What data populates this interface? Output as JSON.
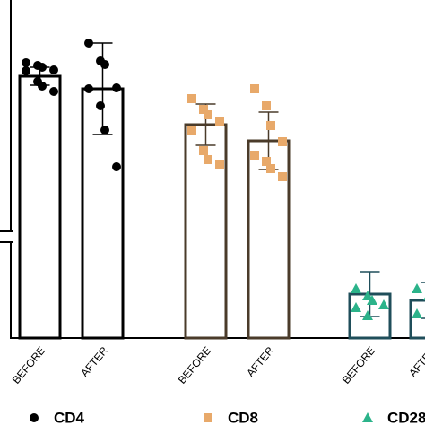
{
  "chart_data": {
    "type": "bar",
    "categories": [
      "BEFORE",
      "AFTER"
    ],
    "ylim": [
      0,
      360
    ],
    "series": [
      {
        "name": "CD4",
        "color": "#000000",
        "edge": "#000000",
        "marker": "circle",
        "values": [
          292,
          278
        ],
        "errors": [
          10,
          51
        ],
        "points": [
          [
            307,
            304,
            302,
            299,
            298,
            286,
            281,
            275
          ],
          [
            329,
            309,
            305,
            279,
            278,
            259,
            232,
            191
          ]
        ]
      },
      {
        "name": "CD8",
        "color": "#e8a96a",
        "edge": "#4a3b2a",
        "marker": "square",
        "values": [
          238,
          220
        ],
        "errors": [
          23,
          32
        ],
        "points": [
          [
            267,
            255,
            249,
            241,
            231,
            209,
            199,
            194
          ],
          [
            278,
            259,
            237,
            219,
            204,
            197,
            189,
            180
          ]
        ]
      },
      {
        "name": "CD28",
        "color": "#2bb38a",
        "edge": "#1f4e5a",
        "marker": "triangle",
        "values": [
          49,
          42
        ],
        "errors": [
          25,
          20
        ],
        "points": [
          [
            55,
            47,
            42,
            37,
            34,
            25
          ],
          [
            55,
            47,
            39,
            32,
            27
          ]
        ]
      }
    ]
  }
}
